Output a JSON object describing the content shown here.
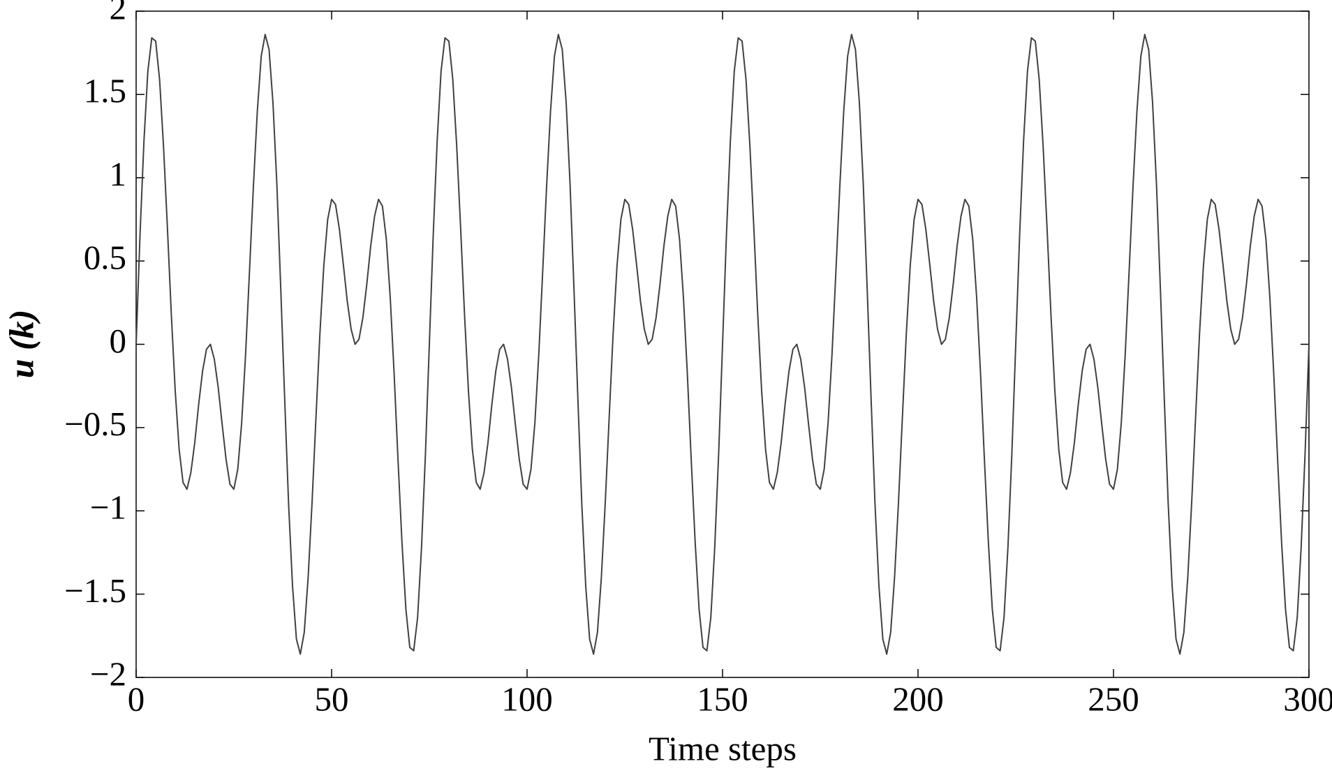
{
  "chart_data": {
    "type": "line",
    "xlabel": "Time steps",
    "ylabel": "u (k)",
    "color": "#404040",
    "xlim": [
      0,
      300
    ],
    "ylim": [
      -2,
      2
    ],
    "xticks": [
      0,
      50,
      100,
      150,
      200,
      250,
      300
    ],
    "yticks": [
      {
        "value": -2,
        "label": "−2"
      },
      {
        "value": -1.5,
        "label": "−1.5"
      },
      {
        "value": -1,
        "label": "−1"
      },
      {
        "value": -0.5,
        "label": "−0.5"
      },
      0,
      0.5,
      1,
      1.5,
      2
    ],
    "x": [
      0,
      1,
      2,
      3,
      4,
      5,
      6,
      7,
      8,
      9,
      10,
      11,
      12,
      13,
      14,
      15,
      16,
      17,
      18,
      19,
      20,
      21,
      22,
      23,
      24,
      25,
      26,
      27,
      28,
      29,
      30,
      31,
      32,
      33,
      34,
      35,
      36,
      37,
      38,
      39,
      40,
      41,
      42,
      43,
      44,
      45,
      46,
      47,
      48,
      49,
      50,
      51,
      52,
      53,
      54,
      55,
      56,
      57,
      58,
      59,
      60,
      61,
      62,
      63,
      64,
      65,
      66,
      67,
      68,
      69,
      70,
      71,
      72,
      73,
      74,
      75,
      76,
      77,
      78,
      79,
      80,
      81,
      82,
      83,
      84,
      85,
      86,
      87,
      88,
      89,
      90,
      91,
      92,
      93,
      94,
      95,
      96,
      97,
      98,
      99,
      100,
      101,
      102,
      103,
      104,
      105,
      106,
      107,
      108,
      109,
      110,
      111,
      112,
      113,
      114,
      115,
      116,
      117,
      118,
      119,
      120,
      121,
      122,
      123,
      124,
      125,
      126,
      127,
      128,
      129,
      130,
      131,
      132,
      133,
      134,
      135,
      136,
      137,
      138,
      139,
      140,
      141,
      142,
      143,
      144,
      145,
      146,
      147,
      148,
      149,
      150,
      151,
      152,
      153,
      154,
      155,
      156,
      157,
      158,
      159,
      160,
      161,
      162,
      163,
      164,
      165,
      166,
      167,
      168,
      169,
      170,
      171,
      172,
      173,
      174,
      175,
      176,
      177,
      178,
      179,
      180,
      181,
      182,
      183,
      184,
      185,
      186,
      187,
      188,
      189,
      190,
      191,
      192,
      193,
      194,
      195,
      196,
      197,
      198,
      199,
      200,
      201,
      202,
      203,
      204,
      205,
      206,
      207,
      208,
      209,
      210,
      211,
      212,
      213,
      214,
      215,
      216,
      217,
      218,
      219,
      220,
      221,
      222,
      223,
      224,
      225,
      226,
      227,
      228,
      229,
      230,
      231,
      232,
      233,
      234,
      235,
      236,
      237,
      238,
      239,
      240,
      241,
      242,
      243,
      244,
      245,
      246,
      247,
      248,
      249,
      250,
      251,
      252,
      253,
      254,
      255,
      256,
      257,
      258,
      259,
      260,
      261,
      262,
      263,
      264,
      265,
      266,
      267,
      268,
      269,
      270,
      271,
      272,
      273,
      274,
      275,
      276,
      277,
      278,
      279,
      280,
      281,
      282,
      283,
      284,
      285,
      286,
      287,
      288,
      289,
      290,
      291,
      292,
      293,
      294,
      295,
      296,
      297,
      298,
      299,
      300
    ],
    "values": [
      0,
      0.66,
      1.22,
      1.64,
      1.84,
      1.82,
      1.59,
      1.19,
      0.7,
      0.18,
      -0.28,
      -0.63,
      -0.83,
      -0.87,
      -0.77,
      -0.59,
      -0.36,
      -0.16,
      -0.03,
      0,
      -0.09,
      -0.26,
      -0.48,
      -0.69,
      -0.84,
      -0.87,
      -0.75,
      -0.47,
      -0.06,
      0.44,
      0.95,
      1.4,
      1.73,
      1.86,
      1.77,
      1.45,
      0.96,
      0.33,
      -0.33,
      -0.96,
      -1.45,
      -1.77,
      -1.86,
      -1.73,
      -1.4,
      -0.95,
      -0.44,
      0.06,
      0.47,
      0.75,
      0.87,
      0.84,
      0.69,
      0.48,
      0.26,
      0.09,
      0,
      0.03,
      0.16,
      0.36,
      0.59,
      0.77,
      0.87,
      0.83,
      0.63,
      0.28,
      -0.18,
      -0.7,
      -1.19,
      -1.59,
      -1.82,
      -1.84,
      -1.64,
      -1.22,
      -0.66,
      0,
      0.66,
      1.22,
      1.64,
      1.84,
      1.82,
      1.59,
      1.19,
      0.7,
      0.18,
      -0.28,
      -0.63,
      -0.83,
      -0.87,
      -0.77,
      -0.59,
      -0.36,
      -0.16,
      -0.03,
      0,
      -0.09,
      -0.26,
      -0.48,
      -0.69,
      -0.84,
      -0.87,
      -0.75,
      -0.47,
      -0.06,
      0.44,
      0.95,
      1.4,
      1.73,
      1.86,
      1.77,
      1.45,
      0.96,
      0.33,
      -0.33,
      -0.96,
      -1.45,
      -1.77,
      -1.86,
      -1.73,
      -1.4,
      -0.95,
      -0.44,
      0.06,
      0.47,
      0.75,
      0.87,
      0.84,
      0.69,
      0.48,
      0.26,
      0.09,
      0,
      0.03,
      0.16,
      0.36,
      0.59,
      0.77,
      0.87,
      0.83,
      0.63,
      0.28,
      -0.18,
      -0.7,
      -1.19,
      -1.59,
      -1.82,
      -1.84,
      -1.64,
      -1.22,
      -0.66,
      0,
      0.66,
      1.22,
      1.64,
      1.84,
      1.82,
      1.59,
      1.19,
      0.7,
      0.18,
      -0.28,
      -0.63,
      -0.83,
      -0.87,
      -0.77,
      -0.59,
      -0.36,
      -0.16,
      -0.03,
      0,
      -0.09,
      -0.26,
      -0.48,
      -0.69,
      -0.84,
      -0.87,
      -0.75,
      -0.47,
      -0.06,
      0.44,
      0.95,
      1.4,
      1.73,
      1.86,
      1.77,
      1.45,
      0.96,
      0.33,
      -0.33,
      -0.96,
      -1.45,
      -1.77,
      -1.86,
      -1.73,
      -1.4,
      -0.95,
      -0.44,
      0.06,
      0.47,
      0.75,
      0.87,
      0.84,
      0.69,
      0.48,
      0.26,
      0.09,
      0,
      0.03,
      0.16,
      0.36,
      0.59,
      0.77,
      0.87,
      0.83,
      0.63,
      0.28,
      -0.18,
      -0.7,
      -1.19,
      -1.59,
      -1.82,
      -1.84,
      -1.64,
      -1.22,
      -0.66,
      0,
      0.66,
      1.22,
      1.64,
      1.84,
      1.82,
      1.59,
      1.19,
      0.7,
      0.18,
      -0.28,
      -0.63,
      -0.83,
      -0.87,
      -0.77,
      -0.59,
      -0.36,
      -0.16,
      -0.03,
      0,
      -0.09,
      -0.26,
      -0.48,
      -0.69,
      -0.84,
      -0.87,
      -0.75,
      -0.47,
      -0.06,
      0.44,
      0.95,
      1.4,
      1.73,
      1.86,
      1.77,
      1.45,
      0.96,
      0.33,
      -0.33,
      -0.96,
      -1.45,
      -1.77,
      -1.86,
      -1.73,
      -1.4,
      -0.95,
      -0.44,
      0.06,
      0.47,
      0.75,
      0.87,
      0.84,
      0.69,
      0.48,
      0.26,
      0.09,
      0,
      0.03,
      0.16,
      0.36,
      0.59,
      0.77,
      0.87,
      0.83,
      0.63,
      0.28,
      -0.18,
      -0.7,
      -1.19,
      -1.59,
      -1.82,
      -1.84,
      -1.64,
      -1.22,
      -0.66,
      0
    ]
  }
}
